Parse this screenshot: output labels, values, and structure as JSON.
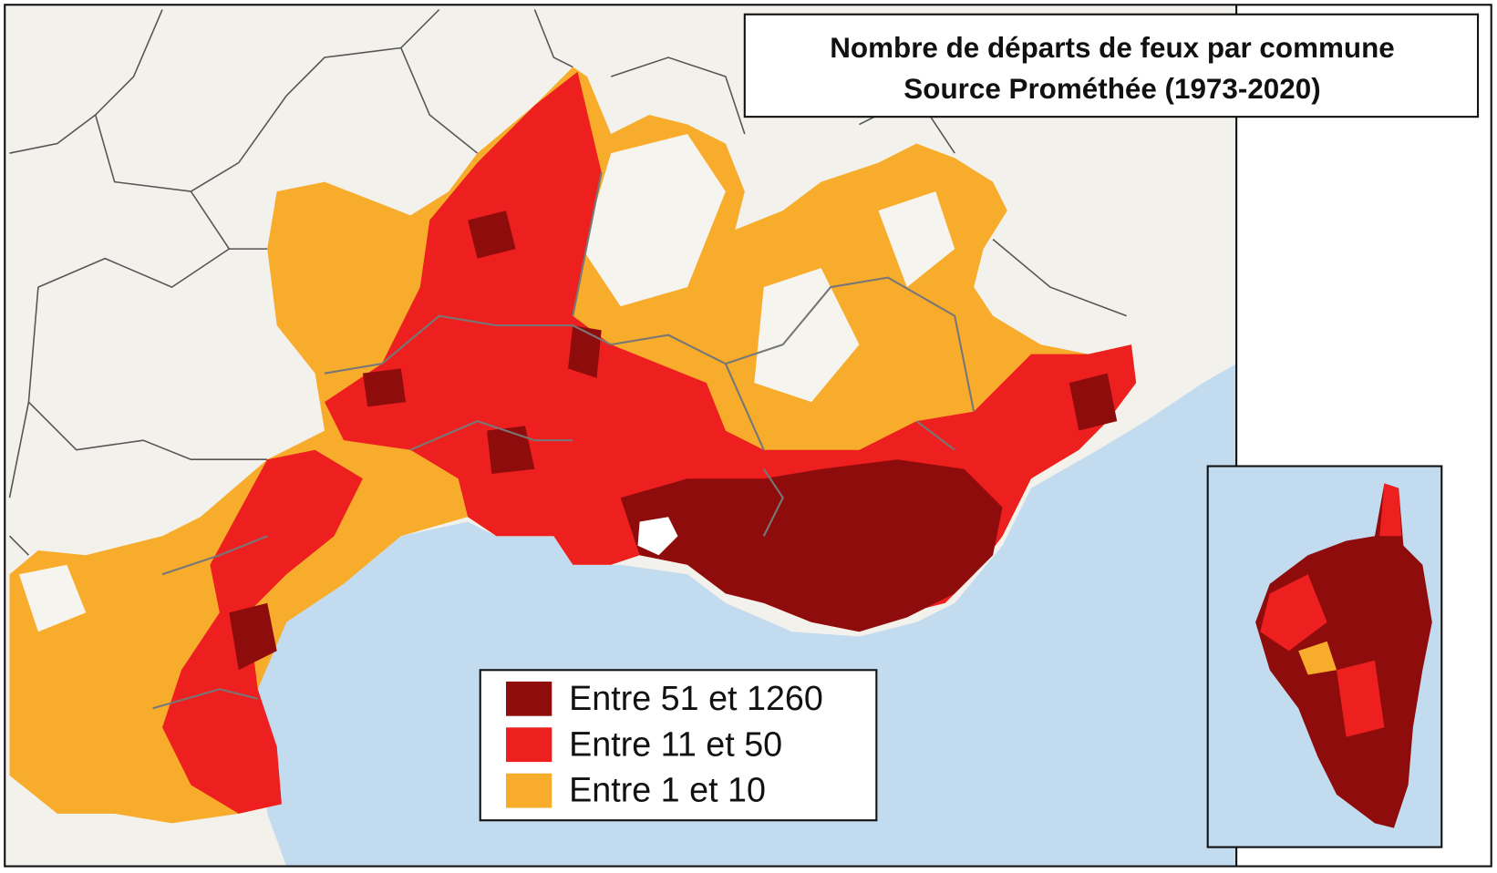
{
  "title": {
    "lines": [
      "Nombre de départs de feux par commune",
      "Source Prométhée (1973-2020)"
    ]
  },
  "legend": {
    "items": [
      {
        "label": "Entre 51 et 1260",
        "color": "#8e0c0c"
      },
      {
        "label": "Entre 11 et 50",
        "color": "#ee1f1f"
      },
      {
        "label": "Entre 1 et 10",
        "color": "#f8ac2c"
      }
    ]
  }
}
